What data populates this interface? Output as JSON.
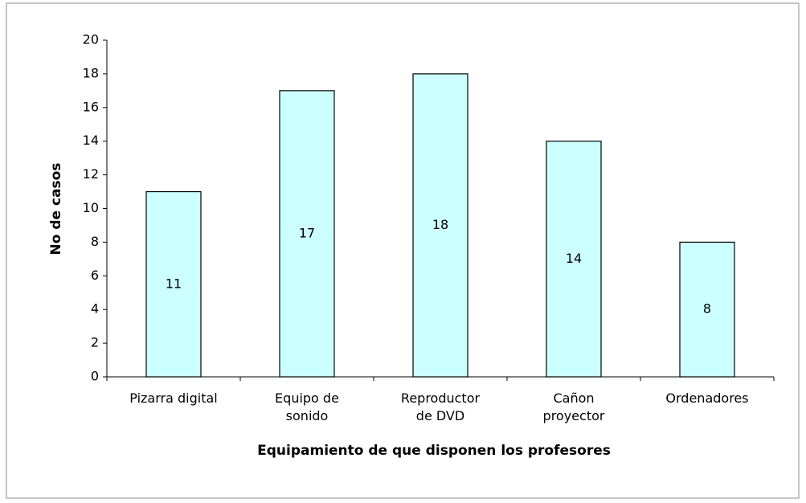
{
  "chart_data": {
    "type": "bar",
    "categories": [
      "Pizarra digital",
      "Equipo de\nsonido",
      "Reproductor\nde DVD",
      "Cañon\nproyector",
      "Ordenadores"
    ],
    "values": [
      11,
      17,
      18,
      14,
      8
    ],
    "color": "#ccffff",
    "xlabel": "Equipamiento de que disponen los profesores",
    "ylabel": "No de casos",
    "ylim": [
      0,
      20
    ],
    "yticks": [
      0,
      2,
      4,
      6,
      8,
      10,
      12,
      14,
      16,
      18,
      20
    ],
    "grid": false,
    "value_labels_shown": true
  }
}
